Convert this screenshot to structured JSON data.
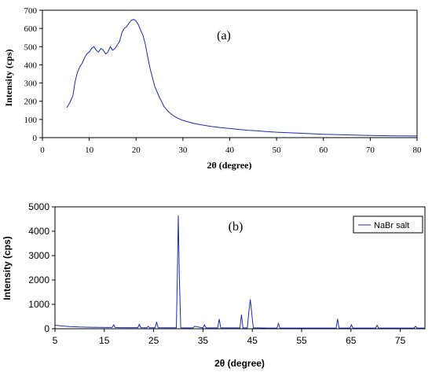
{
  "chart_data": [
    {
      "type": "line",
      "panel_label": "(a)",
      "xlabel": "2θ (degree)",
      "ylabel": "Intensity (cps)",
      "xlim": [
        0,
        80
      ],
      "ylim": [
        0,
        700
      ],
      "xticks": [
        0,
        10,
        20,
        30,
        40,
        50,
        60,
        70,
        80
      ],
      "yticks": [
        0,
        100,
        200,
        300,
        400,
        500,
        600,
        700
      ],
      "grid": false,
      "legend": null,
      "line_color": "#1a2bb0",
      "series": [
        {
          "x": [
            5.2,
            5.8,
            6.5,
            7.0,
            7.5,
            8.0,
            8.5,
            9.0,
            9.5,
            10.0,
            10.5,
            11.0,
            11.5,
            12.0,
            12.5,
            13.0,
            13.5,
            14.0,
            14.5,
            15.0,
            15.5,
            16.0,
            16.5,
            17.0,
            17.5,
            18.0,
            18.5,
            19.0,
            19.5,
            20.0,
            20.5,
            21.0,
            21.5,
            22.0,
            22.5,
            23.0,
            23.5,
            24.0,
            25.0,
            26.0,
            27.0,
            28.0,
            29.0,
            30.0,
            32.0,
            34.0,
            36.0,
            38.0,
            40.0,
            42.0,
            44.0,
            46.0,
            48.0,
            50.0,
            55.0,
            60.0,
            65.0,
            70.0,
            75.0,
            80.0
          ],
          "y": [
            165,
            190,
            230,
            310,
            360,
            390,
            410,
            440,
            460,
            470,
            490,
            500,
            480,
            470,
            490,
            480,
            460,
            470,
            500,
            480,
            490,
            510,
            530,
            580,
            600,
            610,
            630,
            645,
            650,
            640,
            620,
            590,
            560,
            510,
            440,
            380,
            330,
            280,
            220,
            170,
            140,
            120,
            105,
            95,
            80,
            70,
            62,
            55,
            50,
            45,
            40,
            37,
            33,
            30,
            24,
            18,
            15,
            12,
            10,
            9
          ]
        }
      ]
    },
    {
      "type": "line",
      "panel_label": "(b)",
      "xlabel": "2θ (degree)",
      "ylabel": "Intensity (cps)",
      "xlim": [
        5,
        80
      ],
      "ylim": [
        0,
        5000
      ],
      "xticks": [
        5,
        15,
        25,
        35,
        45,
        55,
        65,
        75
      ],
      "yticks": [
        0,
        1000,
        2000,
        3000,
        4000,
        5000
      ],
      "grid": false,
      "legend": "top-right",
      "line_color": "#1a2bb0",
      "series": [
        {
          "name": "NaBr salt",
          "x": [
            5.0,
            6.0,
            8.0,
            10.0,
            12.0,
            14.0,
            16.0,
            16.6,
            16.9,
            17.2,
            18.0,
            20.0,
            21.8,
            22.1,
            22.4,
            23.6,
            23.9,
            24.2,
            25.3,
            25.6,
            25.9,
            27.0,
            28.5,
            29.6,
            29.8,
            30.0,
            30.2,
            30.5,
            31.0,
            32.5,
            33.0,
            33.3,
            35.0,
            35.3,
            35.6,
            37.0,
            38.0,
            38.3,
            38.6,
            40.0,
            42.5,
            42.8,
            43.1,
            44.0,
            44.3,
            44.6,
            44.9,
            45.2,
            46.0,
            48.0,
            50.0,
            50.3,
            50.6,
            52.0,
            55.0,
            58.0,
            60.0,
            62.0,
            62.3,
            62.6,
            63.0,
            64.8,
            65.1,
            65.4,
            67.0,
            70.0,
            70.3,
            70.6,
            72.0,
            74.0,
            76.0,
            77.8,
            78.1,
            78.4,
            80.0
          ],
          "y": [
            150,
            120,
            90,
            70,
            60,
            55,
            50,
            50,
            160,
            50,
            45,
            45,
            45,
            180,
            45,
            40,
            100,
            40,
            40,
            280,
            40,
            40,
            40,
            40,
            2000,
            4650,
            2200,
            40,
            35,
            35,
            35,
            100,
            35,
            160,
            35,
            35,
            35,
            400,
            35,
            35,
            35,
            580,
            35,
            35,
            700,
            1200,
            600,
            35,
            35,
            30,
            30,
            220,
            30,
            30,
            30,
            30,
            30,
            30,
            400,
            30,
            30,
            30,
            160,
            30,
            30,
            30,
            140,
            30,
            30,
            30,
            30,
            30,
            100,
            30,
            30
          ]
        }
      ]
    }
  ]
}
